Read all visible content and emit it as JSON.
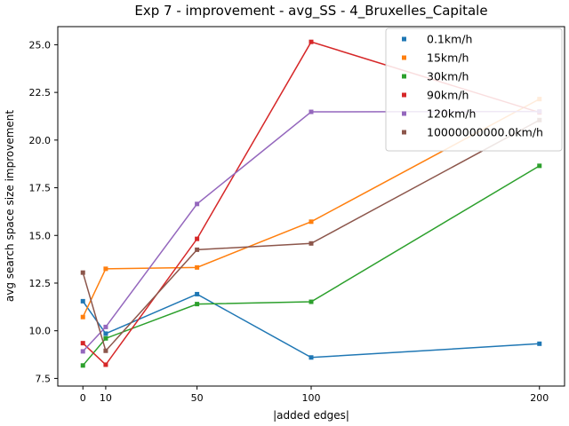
{
  "chart_data": {
    "type": "line",
    "title": "Exp 7 - improvement - avg_SS - 4_Bruxelles_Capitale",
    "xlabel": "|added edges|",
    "ylabel": "avg search space size improvement",
    "x": [
      0,
      10,
      50,
      100,
      200
    ],
    "x_ticks": [
      0,
      10,
      50,
      100,
      200
    ],
    "xlim": [
      -11,
      211
    ],
    "y_ticks": [
      7.5,
      10.0,
      12.5,
      15.0,
      17.5,
      20.0,
      22.5,
      25.0
    ],
    "y_tick_labels": [
      "7.5",
      "10.0",
      "12.5",
      "15.0",
      "17.5",
      "20.0",
      "22.5",
      "25.0"
    ],
    "ylim": [
      7.1,
      25.95
    ],
    "legend_position": "top-right",
    "grid": false,
    "series": [
      {
        "name": "0.1km/h",
        "color": "#1f77b4",
        "values": [
          11.55,
          9.85,
          11.92,
          8.6,
          9.32
        ]
      },
      {
        "name": "15km/h",
        "color": "#ff7f0e",
        "values": [
          10.72,
          13.25,
          13.32,
          15.72,
          22.15
        ]
      },
      {
        "name": "30km/h",
        "color": "#2ca02c",
        "values": [
          8.18,
          9.6,
          11.4,
          11.52,
          18.65
        ]
      },
      {
        "name": "90km/h",
        "color": "#d62728",
        "values": [
          9.35,
          8.22,
          14.82,
          25.15,
          21.45
        ]
      },
      {
        "name": "120km/h",
        "color": "#9467bd",
        "values": [
          8.92,
          10.2,
          16.65,
          21.48,
          21.5
        ]
      },
      {
        "name": "10000000000.0km/h",
        "color": "#8c564b",
        "values": [
          13.05,
          8.95,
          14.25,
          14.58,
          21.05
        ]
      }
    ]
  }
}
